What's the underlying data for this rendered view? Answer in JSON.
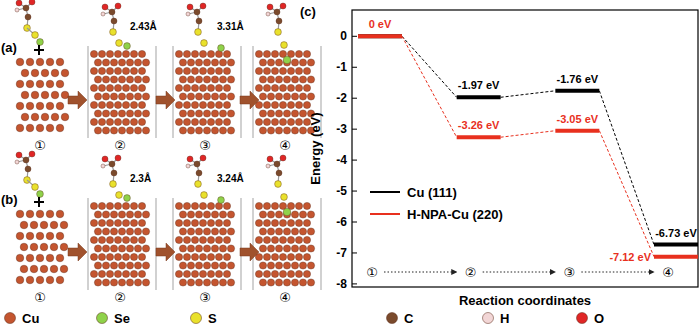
{
  "panels": [
    {
      "label": "(a)",
      "steps": [
        "①",
        "②",
        "③",
        "④"
      ],
      "distances": [
        "2.43Å",
        "3.31Å"
      ]
    },
    {
      "label": "(b)",
      "steps": [
        "①",
        "②",
        "③",
        "④"
      ],
      "distances": [
        "2.3Å",
        "3.24Å"
      ]
    }
  ],
  "atom_legend": [
    {
      "name": "Cu",
      "color": "#c4552f"
    },
    {
      "name": "Se",
      "color": "#8fd24a"
    },
    {
      "name": "S",
      "color": "#e9e12c"
    },
    {
      "name": "C",
      "color": "#7a4a2c"
    },
    {
      "name": "H",
      "color": "#f2d6d6"
    },
    {
      "name": "O",
      "color": "#e02626"
    }
  ],
  "chart_data": {
    "type": "line",
    "panel_label": "(c)",
    "ylabel": "Energy (eV)",
    "xlabel": "Reaction coordinates",
    "categories": [
      "①",
      "②",
      "③",
      "④"
    ],
    "series": [
      {
        "name": "Cu (111)",
        "color": "#000000",
        "line_style": "dashed",
        "values": [
          0,
          -1.97,
          -1.76,
          -6.73
        ],
        "value_labels": [
          null,
          "-1.97 eV",
          "-1.76 eV",
          "-6.73 eV"
        ]
      },
      {
        "name": "H-NPA-Cu (220)",
        "color": "#e8301e",
        "line_style": "dashed",
        "values": [
          0,
          -3.26,
          -3.05,
          -7.12
        ],
        "value_labels": [
          "0 eV",
          "-3.26 eV",
          "-3.05 eV",
          "-7.12 eV"
        ]
      }
    ],
    "ylim": [
      -8.1,
      0.85
    ],
    "yticks": [
      -8,
      -7,
      -6,
      -5,
      -4,
      -3,
      -2,
      -1,
      0
    ],
    "legend": "left",
    "data_labels": true
  }
}
